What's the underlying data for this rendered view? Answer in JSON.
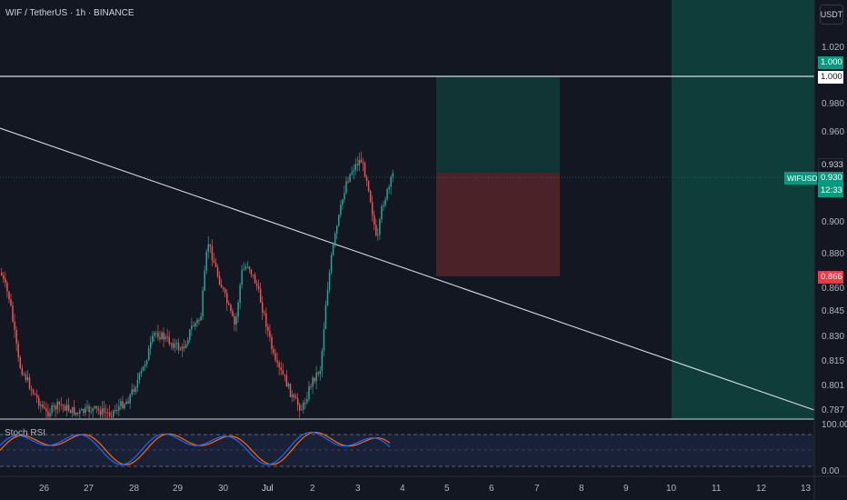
{
  "header": {
    "title": "WIF / TetherUS · 1h · BINANCE"
  },
  "currency_button": {
    "label": "USDT"
  },
  "price_axis": {
    "ticks": [
      "1.020",
      "0.980",
      "0.960",
      "0.900",
      "0.880",
      "0.860",
      "0.845",
      "0.830",
      "0.815",
      "0.801",
      "0.787"
    ]
  },
  "price_tags": {
    "target_upper": "1.000",
    "target_lower": "1.000",
    "last_price_level": "0.933",
    "symbol": "WIFUSDT",
    "current_price": "0.930",
    "countdown": "12:33",
    "stop": "0.866"
  },
  "time_axis": {
    "labels": [
      "26",
      "27",
      "28",
      "29",
      "30",
      "Jul",
      "2",
      "3",
      "4",
      "5",
      "6",
      "7",
      "8",
      "9",
      "10",
      "11",
      "12",
      "13"
    ]
  },
  "indicator": {
    "name": "Stoch RSI",
    "ticks": [
      "100.00",
      "0.00"
    ]
  },
  "colors": {
    "background": "#131722",
    "candle_up": "#26a69a",
    "candle_down": "#ef5350",
    "profit_zone": "#0f3d3a",
    "loss_zone": "#4a2227",
    "rsi_k": "#2962ff",
    "rsi_d": "#ff6d00"
  }
}
